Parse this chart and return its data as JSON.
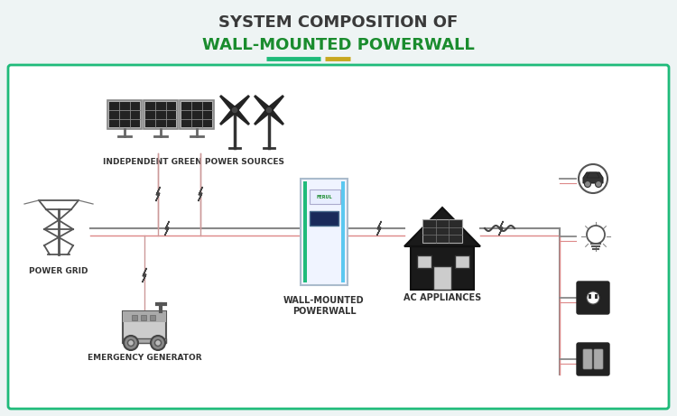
{
  "title_line1": "SYSTEM COMPOSITION OF",
  "title_line2": "WALL-MOUNTED POWERWALL",
  "title_color1": "#3a3a3a",
  "title_color2": "#1a8c2e",
  "bg_color": "#eef4f4",
  "box_color": "#1fbb7a",
  "box_inner_color": "#ffffff",
  "label_independent": "INDEPENDENT GREEN POWER SOURCES",
  "label_power_grid": "POWER GRID",
  "label_generator": "EMERGENCY GENERATOR",
  "label_powerwall_1": "WALL-MOUNTED",
  "label_powerwall_2": "POWERWALL",
  "label_ac": "AC APPLIANCES",
  "line_gray": "#888888",
  "line_red": "#cc4444",
  "line_dark": "#666666"
}
